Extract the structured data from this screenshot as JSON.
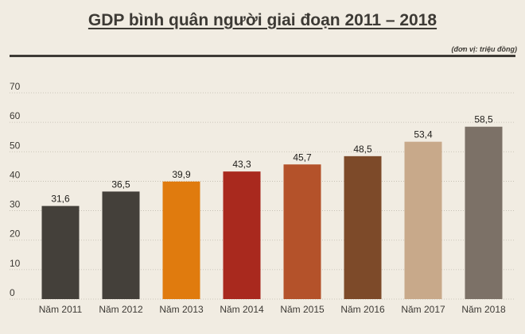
{
  "chart_data": {
    "type": "bar",
    "title": "GDP bình quân người giai đoạn 2011 – 2018",
    "unit_note": "(đơn vị: triệu đồng)",
    "xlabel": "",
    "ylabel": "",
    "ylim": [
      0,
      70
    ],
    "yticks": [
      0,
      10,
      20,
      30,
      40,
      50,
      60,
      70
    ],
    "grid": true,
    "categories": [
      "Năm 2011",
      "Năm 2012",
      "Năm 2013",
      "Năm 2014",
      "Năm 2015",
      "Năm 2016",
      "Năm 2017",
      "Năm 2018"
    ],
    "values": [
      31.6,
      36.5,
      39.9,
      43.3,
      45.7,
      48.5,
      53.4,
      58.5
    ],
    "value_labels": [
      "31,6",
      "36,5",
      "39,9",
      "43,3",
      "45,7",
      "48,5",
      "53,4",
      "58,5"
    ],
    "colors": [
      "#44403a",
      "#44403a",
      "#e07b0e",
      "#a9291e",
      "#b4522a",
      "#7d4a29",
      "#c8a98a",
      "#7c7167"
    ]
  }
}
